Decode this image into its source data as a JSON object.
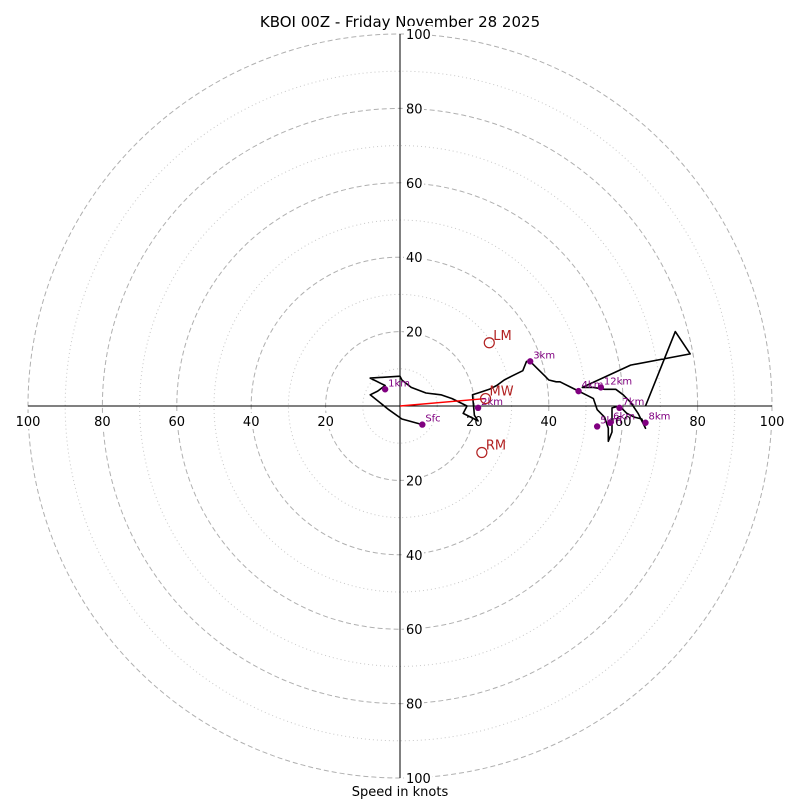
{
  "chart_data": {
    "type": "hodograph",
    "title": "KBOI 00Z - Friday November 28 2025",
    "xlabel": "Speed in knots",
    "xlim": [
      -100,
      100
    ],
    "ylim": [
      -100,
      100
    ],
    "major_rings": [
      20,
      40,
      60,
      80,
      100
    ],
    "minor_rings": [
      10,
      30,
      50,
      70,
      90
    ],
    "x_tick_labels": [
      {
        "value": -100,
        "label": "100"
      },
      {
        "value": -80,
        "label": "80"
      },
      {
        "value": -60,
        "label": "60"
      },
      {
        "value": -40,
        "label": "40"
      },
      {
        "value": -20,
        "label": "20"
      },
      {
        "value": 20,
        "label": "20"
      },
      {
        "value": 40,
        "label": "40"
      },
      {
        "value": 60,
        "label": "60"
      },
      {
        "value": 80,
        "label": "80"
      },
      {
        "value": 100,
        "label": "100"
      }
    ],
    "y_tick_labels": [
      {
        "value": 100,
        "label": "100"
      },
      {
        "value": 80,
        "label": "80"
      },
      {
        "value": 60,
        "label": "60"
      },
      {
        "value": 40,
        "label": "40"
      },
      {
        "value": 20,
        "label": "20"
      },
      {
        "value": -20,
        "label": "20"
      },
      {
        "value": -40,
        "label": "40"
      },
      {
        "value": -60,
        "label": "60"
      },
      {
        "value": -80,
        "label": "80"
      },
      {
        "value": -100,
        "label": "100"
      }
    ],
    "hodograph_trace": [
      [
        6,
        -5
      ],
      [
        0.5,
        -3.5
      ],
      [
        -3,
        -1
      ],
      [
        -8,
        3
      ],
      [
        -6,
        4
      ],
      [
        -4,
        5.5
      ],
      [
        -7,
        7
      ],
      [
        -8,
        7.5
      ],
      [
        0,
        8
      ],
      [
        0.5,
        7
      ],
      [
        3,
        5
      ],
      [
        7,
        3.5
      ],
      [
        11,
        3
      ],
      [
        14,
        2
      ],
      [
        18,
        0
      ],
      [
        17,
        -2
      ],
      [
        21,
        -4
      ],
      [
        20,
        -2.5
      ],
      [
        19.5,
        3
      ],
      [
        21,
        3.5
      ],
      [
        24,
        4.5
      ],
      [
        26,
        5.5
      ],
      [
        28,
        7
      ],
      [
        30,
        8
      ],
      [
        33,
        9.5
      ],
      [
        34,
        12
      ],
      [
        35,
        12
      ],
      [
        37,
        10
      ],
      [
        39,
        8
      ],
      [
        40,
        7
      ],
      [
        42,
        6.5
      ],
      [
        43,
        6.5
      ],
      [
        44,
        6
      ],
      [
        46,
        5
      ],
      [
        48,
        4
      ],
      [
        50,
        3
      ],
      [
        52,
        2
      ],
      [
        53,
        -1
      ],
      [
        55,
        -3
      ],
      [
        56,
        -6
      ],
      [
        56,
        -9.5
      ],
      [
        57,
        -7
      ],
      [
        57,
        -0.5
      ],
      [
        59,
        0
      ],
      [
        60,
        -1
      ],
      [
        61,
        -2
      ],
      [
        63,
        -3
      ],
      [
        65,
        -3.5
      ],
      [
        66,
        -6
      ],
      [
        64,
        -2
      ],
      [
        62,
        1
      ],
      [
        60,
        3
      ],
      [
        58,
        4.5
      ],
      [
        55,
        4.5
      ],
      [
        52,
        5
      ],
      [
        49,
        5
      ],
      [
        62,
        11
      ],
      [
        78,
        14
      ],
      [
        74,
        20
      ],
      [
        66,
        0
      ]
    ],
    "height_markers": [
      {
        "label": "Sfc",
        "u": 6,
        "v": -5
      },
      {
        "label": "1km",
        "u": -4,
        "v": 4.5
      },
      {
        "label": "2km",
        "u": 21,
        "v": -0.5
      },
      {
        "label": "3km",
        "u": 35,
        "v": 12
      },
      {
        "label": "4km",
        "u": 48,
        "v": 4
      },
      {
        "label": "5km",
        "u": 53,
        "v": -5.5
      },
      {
        "label": "6km",
        "u": 56.5,
        "v": -4.5
      },
      {
        "label": "7km",
        "u": 59,
        "v": -0.5
      },
      {
        "label": "8km",
        "u": 66,
        "v": -4.5
      },
      {
        "label": "12km",
        "u": 54,
        "v": 5
      }
    ],
    "motion_markers": [
      {
        "label": "LM",
        "u": 24,
        "v": 17
      },
      {
        "label": "MW",
        "u": 23,
        "v": 2
      },
      {
        "label": "RM",
        "u": 22,
        "v": -12.5
      }
    ],
    "mean_wind_vector": {
      "u": 23,
      "v": 2
    },
    "colors": {
      "trace": "#000000",
      "height_marker": "#800080",
      "motion_marker": "#b22222",
      "mean_wind_vector": "#ff0000",
      "major_grid": "#b0b0b0",
      "minor_grid": "#c8c8c8"
    }
  }
}
